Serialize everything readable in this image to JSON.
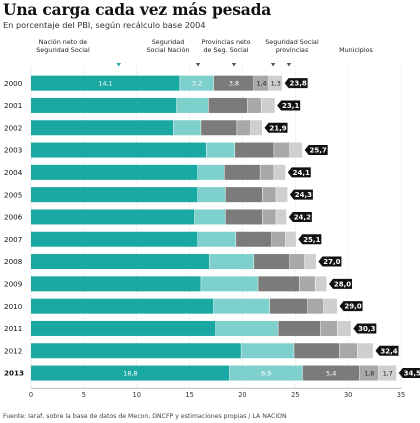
{
  "title": "Una carga cada vez más pesada",
  "subtitle": "En porcentaje del PBI, según recálculo base 2004",
  "source": "Fuente: Iaraf, sobre la base de datos de Mecon, DNCFP y estimaciones propias / LA NACION",
  "colors": {
    "nacion_neto": "#1aa8a3",
    "seg_social_nacion": "#7dd0cb",
    "provincias_neto": "#7b7b7b",
    "seg_social_provincias": "#a8a8a8",
    "municipios": "#cfcfcf",
    "total_badge": "#111111"
  },
  "chart_data": {
    "type": "bar",
    "orientation": "horizontal",
    "stacked": true,
    "categories": [
      "2000",
      "2001",
      "2002",
      "2003",
      "2004",
      "2005",
      "2006",
      "2007",
      "2008",
      "2009",
      "2010",
      "2011",
      "2012",
      "2013"
    ],
    "bold_categories": [
      "2013"
    ],
    "series": [
      {
        "name": "Nación neto de Seguridad Social",
        "values": [
          14.1,
          13.8,
          13.5,
          16.6,
          15.8,
          15.8,
          15.5,
          15.8,
          16.9,
          16.1,
          17.3,
          17.5,
          19.9,
          18.8
        ],
        "labels": [
          "14,1",
          "",
          "",
          "",
          "",
          "",
          "",
          "",
          "",
          "",
          "",
          "",
          "",
          "18,8"
        ]
      },
      {
        "name": "Seguridad Social Nación",
        "values": [
          3.2,
          3.0,
          2.6,
          2.7,
          2.5,
          2.6,
          2.9,
          3.6,
          4.2,
          5.4,
          5.3,
          5.9,
          5.0,
          6.9
        ],
        "labels": [
          "3,2",
          "",
          "",
          "",
          "",
          "",
          "",
          "",
          "",
          "",
          "",
          "",
          "",
          "6,9"
        ]
      },
      {
        "name": "Provincias neto de Seg. Social",
        "values": [
          3.8,
          3.7,
          3.4,
          3.7,
          3.4,
          3.5,
          3.5,
          3.4,
          3.4,
          3.9,
          3.6,
          4.0,
          4.3,
          5.4
        ],
        "labels": [
          "3,8",
          "",
          "",
          "",
          "",
          "",
          "",
          "",
          "",
          "",
          "",
          "",
          "",
          "5,4"
        ]
      },
      {
        "name": "Seguridad Social provincias",
        "values": [
          1.4,
          1.3,
          1.3,
          1.5,
          1.3,
          1.3,
          1.3,
          1.3,
          1.4,
          1.5,
          1.5,
          1.6,
          1.7,
          1.8
        ],
        "labels": [
          "1,4",
          "",
          "",
          "",
          "",
          "",
          "",
          "",
          "",
          "",
          "",
          "",
          "",
          "1,8"
        ]
      },
      {
        "name": "Municipios",
        "values": [
          1.3,
          1.3,
          1.1,
          1.2,
          1.1,
          1.1,
          1.0,
          1.0,
          1.1,
          1.1,
          1.3,
          1.3,
          1.5,
          1.7
        ],
        "labels": [
          "1,3",
          "",
          "",
          "",
          "",
          "",
          "",
          "",
          "",
          "",
          "",
          "",
          "",
          "1,7"
        ]
      }
    ],
    "totals": [
      "23,8",
      "23,1",
      "21,9",
      "25,7",
      "24,1",
      "24,3",
      "24,2",
      "25,1",
      "27,0",
      "28,0",
      "29,0",
      "30,3",
      "32,4",
      "34,5"
    ],
    "xlim": [
      0,
      35
    ],
    "xticks": [
      "0",
      "5",
      "10",
      "15",
      "20",
      "25",
      "30",
      "35"
    ],
    "grid": true,
    "legend_placement": "top"
  }
}
